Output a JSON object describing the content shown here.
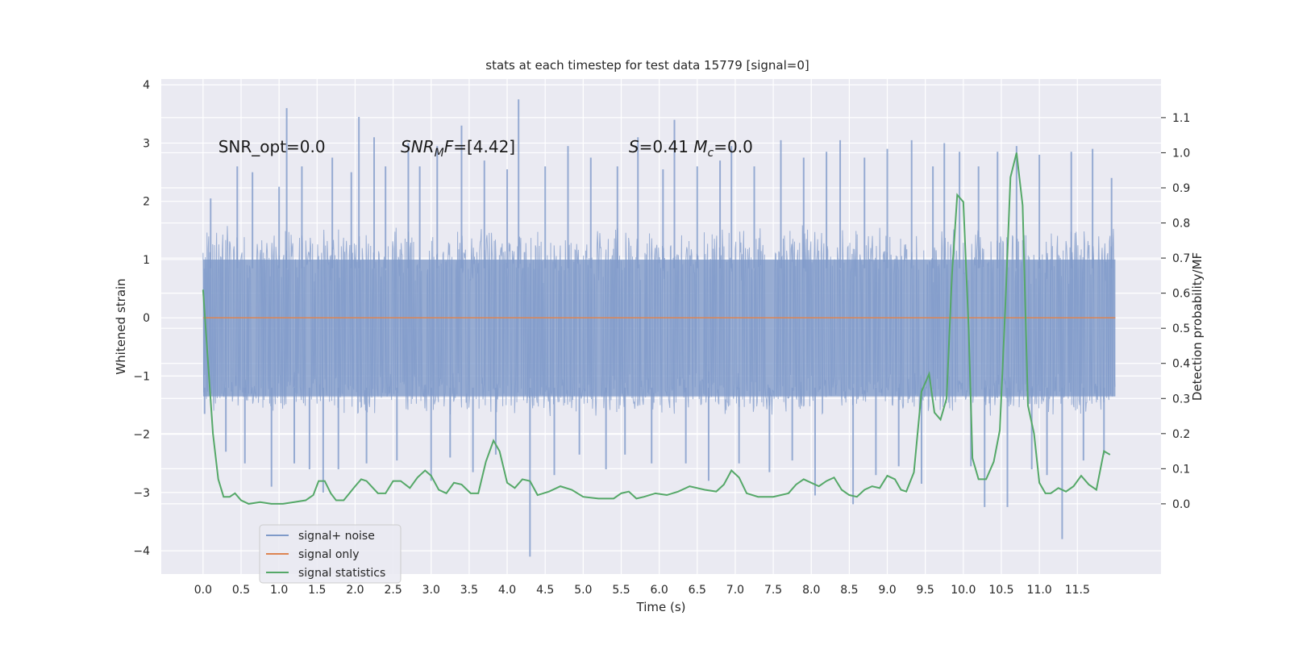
{
  "chart_data": {
    "type": "line",
    "title": "stats at each timestep for test data 15779 [signal=0]",
    "xlabel": "Time (s)",
    "ylabel": "Whitened strain",
    "ylabel_right": "Detection probability/MF",
    "xlim": [
      -0.55,
      12.6
    ],
    "ylim": [
      -4.4,
      4.1
    ],
    "ylim_right": [
      -0.2,
      1.21
    ],
    "grid": true,
    "legend_position": "lower-left",
    "x_ticks": [
      0.0,
      0.5,
      1.0,
      1.5,
      2.0,
      2.5,
      3.0,
      3.5,
      4.0,
      4.5,
      5.0,
      5.5,
      6.0,
      6.5,
      7.0,
      7.5,
      8.0,
      8.5,
      9.0,
      9.5,
      10.0,
      10.5,
      11.0,
      11.5
    ],
    "x_tick_labels": [
      "0.0",
      "0.5",
      "1.0",
      "1.5",
      "2.0",
      "2.5",
      "3.0",
      "3.5",
      "4.0",
      "4.5",
      "5.0",
      "5.5",
      "6.0",
      "6.5",
      "7.0",
      "7.5",
      "8.0",
      "8.5",
      "9.0",
      "9.5",
      "10.0",
      "10.5",
      "11.0",
      "11.5"
    ],
    "y_ticks": [
      -4,
      -3,
      -2,
      -1,
      0,
      1,
      2,
      3,
      4
    ],
    "y_tick_labels": [
      "−4",
      "−3",
      "−2",
      "−1",
      "0",
      "1",
      "2",
      "3",
      "4"
    ],
    "y_right_ticks": [
      0.0,
      0.1,
      0.2,
      0.3,
      0.4,
      0.5,
      0.6,
      0.7,
      0.8,
      0.9,
      1.0,
      1.1
    ],
    "y_right_tick_labels": [
      "0.0",
      "0.1",
      "0.2",
      "0.3",
      "0.4",
      "0.5",
      "0.6",
      "0.7",
      "0.8",
      "0.9",
      "1.0",
      "1.1"
    ],
    "annotations": [
      {
        "parts": [
          {
            "t": "SNR_opt=0.0",
            "style": "normal"
          }
        ],
        "x": 0.2,
        "y": 2.95
      },
      {
        "parts": [
          {
            "t": "SNR",
            "style": "italic"
          },
          {
            "t": "M",
            "style": "italic-sub"
          },
          {
            "t": "F",
            "style": "italic"
          },
          {
            "t": "=[4.42]",
            "style": "normal"
          }
        ],
        "x": 2.6,
        "y": 2.95
      },
      {
        "parts": [
          {
            "t": "S",
            "style": "italic"
          },
          {
            "t": "=0.41   ",
            "style": "normal"
          },
          {
            "t": "M",
            "style": "italic"
          },
          {
            "t": "c",
            "style": "italic-sub"
          },
          {
            "t": "=0.0",
            "style": "normal"
          }
        ],
        "x": 5.6,
        "y": 2.95
      }
    ],
    "series": [
      {
        "name": "signal+ noise",
        "axis": "left",
        "kind": "noise-band",
        "color": "#7f9ac9",
        "x_range": [
          0.0,
          12.0
        ],
        "envelope": [
          -1.4,
          1.05
        ],
        "spikes": [
          {
            "x": 0.02,
            "y": -1.65
          },
          {
            "x": 0.1,
            "y": 2.05
          },
          {
            "x": 0.3,
            "y": -2.3
          },
          {
            "x": 0.45,
            "y": 2.6
          },
          {
            "x": 0.55,
            "y": -2.5
          },
          {
            "x": 0.65,
            "y": 2.5
          },
          {
            "x": 0.9,
            "y": -2.9
          },
          {
            "x": 1.0,
            "y": 2.25
          },
          {
            "x": 1.1,
            "y": 3.6
          },
          {
            "x": 1.2,
            "y": -2.5
          },
          {
            "x": 1.3,
            "y": 2.6
          },
          {
            "x": 1.4,
            "y": -2.6
          },
          {
            "x": 1.58,
            "y": -3.0
          },
          {
            "x": 1.7,
            "y": 2.75
          },
          {
            "x": 1.78,
            "y": -2.6
          },
          {
            "x": 1.95,
            "y": 2.5
          },
          {
            "x": 2.05,
            "y": 3.45
          },
          {
            "x": 2.15,
            "y": -2.5
          },
          {
            "x": 2.25,
            "y": 3.1
          },
          {
            "x": 2.4,
            "y": 2.6
          },
          {
            "x": 2.55,
            "y": -2.45
          },
          {
            "x": 2.7,
            "y": 3.0
          },
          {
            "x": 2.85,
            "y": 2.6
          },
          {
            "x": 3.0,
            "y": -2.8
          },
          {
            "x": 3.08,
            "y": 2.95
          },
          {
            "x": 3.25,
            "y": -2.4
          },
          {
            "x": 3.4,
            "y": 3.3
          },
          {
            "x": 3.55,
            "y": -2.65
          },
          {
            "x": 3.7,
            "y": 2.7
          },
          {
            "x": 3.85,
            "y": -2.35
          },
          {
            "x": 4.0,
            "y": 2.55
          },
          {
            "x": 4.15,
            "y": 3.75
          },
          {
            "x": 4.3,
            "y": -4.1
          },
          {
            "x": 4.5,
            "y": 2.6
          },
          {
            "x": 4.62,
            "y": -2.7
          },
          {
            "x": 4.8,
            "y": 2.95
          },
          {
            "x": 4.95,
            "y": -2.35
          },
          {
            "x": 5.1,
            "y": 2.75
          },
          {
            "x": 5.3,
            "y": -2.6
          },
          {
            "x": 5.45,
            "y": 2.6
          },
          {
            "x": 5.55,
            "y": -2.35
          },
          {
            "x": 5.72,
            "y": 3.1
          },
          {
            "x": 5.9,
            "y": -2.5
          },
          {
            "x": 6.05,
            "y": 2.55
          },
          {
            "x": 6.2,
            "y": 3.4
          },
          {
            "x": 6.35,
            "y": -2.5
          },
          {
            "x": 6.5,
            "y": 2.6
          },
          {
            "x": 6.65,
            "y": -2.8
          },
          {
            "x": 6.8,
            "y": 2.7
          },
          {
            "x": 6.95,
            "y": 2.95
          },
          {
            "x": 7.05,
            "y": -2.5
          },
          {
            "x": 7.25,
            "y": 2.6
          },
          {
            "x": 7.45,
            "y": -2.65
          },
          {
            "x": 7.6,
            "y": 3.05
          },
          {
            "x": 7.75,
            "y": -2.45
          },
          {
            "x": 7.9,
            "y": 2.75
          },
          {
            "x": 8.05,
            "y": -3.05
          },
          {
            "x": 8.2,
            "y": 2.85
          },
          {
            "x": 8.38,
            "y": 3.05
          },
          {
            "x": 8.55,
            "y": -3.2
          },
          {
            "x": 8.7,
            "y": 2.75
          },
          {
            "x": 8.85,
            "y": -2.7
          },
          {
            "x": 9.0,
            "y": 2.9
          },
          {
            "x": 9.15,
            "y": -2.55
          },
          {
            "x": 9.32,
            "y": 3.05
          },
          {
            "x": 9.45,
            "y": -2.85
          },
          {
            "x": 9.6,
            "y": 2.6
          },
          {
            "x": 9.75,
            "y": 3.0
          },
          {
            "x": 9.95,
            "y": 2.85
          },
          {
            "x": 10.1,
            "y": -2.55
          },
          {
            "x": 10.2,
            "y": 2.6
          },
          {
            "x": 10.28,
            "y": -3.25
          },
          {
            "x": 10.45,
            "y": 2.85
          },
          {
            "x": 10.58,
            "y": -3.25
          },
          {
            "x": 10.7,
            "y": 2.95
          },
          {
            "x": 10.9,
            "y": -2.6
          },
          {
            "x": 11.0,
            "y": 2.8
          },
          {
            "x": 11.1,
            "y": -2.7
          },
          {
            "x": 11.3,
            "y": -3.8
          },
          {
            "x": 11.42,
            "y": 2.85
          },
          {
            "x": 11.58,
            "y": -2.45
          },
          {
            "x": 11.7,
            "y": 2.9
          },
          {
            "x": 11.85,
            "y": -2.35
          },
          {
            "x": 11.95,
            "y": 2.4
          }
        ]
      },
      {
        "name": "signal only",
        "axis": "left",
        "kind": "line",
        "color": "#dd8452",
        "x": [
          0.0,
          12.0
        ],
        "y": [
          0.0,
          0.0
        ]
      },
      {
        "name": "signal statistics",
        "axis": "right",
        "kind": "line",
        "color": "#55a868",
        "x": [
          0.0,
          0.06,
          0.13,
          0.2,
          0.27,
          0.35,
          0.42,
          0.5,
          0.6,
          0.75,
          0.9,
          1.05,
          1.2,
          1.35,
          1.45,
          1.52,
          1.6,
          1.68,
          1.75,
          1.85,
          2.0,
          2.08,
          2.15,
          2.3,
          2.4,
          2.5,
          2.6,
          2.72,
          2.82,
          2.92,
          3.0,
          3.1,
          3.2,
          3.3,
          3.4,
          3.52,
          3.62,
          3.72,
          3.82,
          3.9,
          4.0,
          4.1,
          4.2,
          4.3,
          4.4,
          4.55,
          4.7,
          4.85,
          5.0,
          5.2,
          5.4,
          5.5,
          5.6,
          5.7,
          5.8,
          5.95,
          6.1,
          6.25,
          6.4,
          6.6,
          6.75,
          6.85,
          6.95,
          7.05,
          7.15,
          7.3,
          7.5,
          7.7,
          7.8,
          7.9,
          8.0,
          8.1,
          8.2,
          8.3,
          8.4,
          8.5,
          8.6,
          8.7,
          8.8,
          8.9,
          9.0,
          9.1,
          9.18,
          9.25,
          9.35,
          9.45,
          9.55,
          9.62,
          9.7,
          9.78,
          9.85,
          9.92,
          10.0,
          10.07,
          10.12,
          10.2,
          10.3,
          10.4,
          10.48,
          10.55,
          10.62,
          10.7,
          10.78,
          10.85,
          10.93,
          11.0,
          11.08,
          11.15,
          11.25,
          11.35,
          11.45,
          11.55,
          11.65,
          11.75,
          11.85,
          11.93
        ],
        "y": [
          0.61,
          0.42,
          0.2,
          0.07,
          0.02,
          0.02,
          0.03,
          0.01,
          0.0,
          0.005,
          0.0,
          0.0,
          0.005,
          0.01,
          0.025,
          0.065,
          0.065,
          0.03,
          0.01,
          0.01,
          0.05,
          0.07,
          0.065,
          0.03,
          0.03,
          0.065,
          0.065,
          0.045,
          0.075,
          0.095,
          0.08,
          0.04,
          0.03,
          0.06,
          0.055,
          0.03,
          0.03,
          0.12,
          0.18,
          0.15,
          0.06,
          0.045,
          0.07,
          0.065,
          0.025,
          0.035,
          0.05,
          0.04,
          0.02,
          0.015,
          0.015,
          0.03,
          0.035,
          0.015,
          0.02,
          0.03,
          0.025,
          0.035,
          0.05,
          0.04,
          0.035,
          0.055,
          0.095,
          0.075,
          0.03,
          0.02,
          0.02,
          0.03,
          0.055,
          0.07,
          0.06,
          0.05,
          0.065,
          0.075,
          0.04,
          0.025,
          0.02,
          0.04,
          0.05,
          0.045,
          0.08,
          0.07,
          0.04,
          0.035,
          0.09,
          0.32,
          0.37,
          0.26,
          0.24,
          0.3,
          0.65,
          0.88,
          0.86,
          0.5,
          0.13,
          0.07,
          0.07,
          0.12,
          0.21,
          0.55,
          0.93,
          1.0,
          0.85,
          0.28,
          0.2,
          0.06,
          0.03,
          0.03,
          0.045,
          0.035,
          0.05,
          0.08,
          0.055,
          0.04,
          0.15,
          0.14
        ]
      }
    ]
  }
}
